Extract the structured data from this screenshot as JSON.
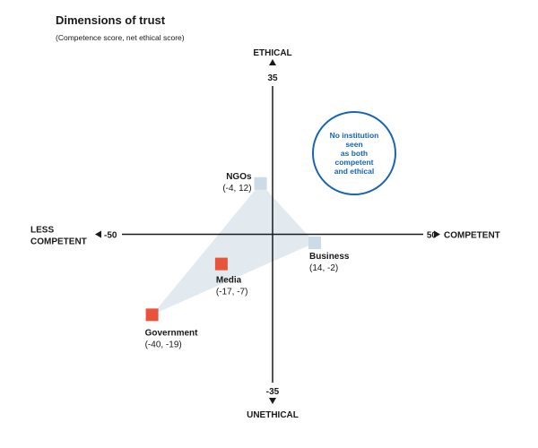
{
  "title": "Dimensions of trust",
  "subtitle": "(Competence score, net ethical score)",
  "callout": "No institution seen\nas both competent\nand ethical",
  "colors": {
    "highlight": "#e8543a",
    "neutral": "#ccdbe6",
    "triangle": "#e2eaf0",
    "callout": "#1565b5"
  },
  "chart_data": {
    "type": "scatter",
    "title": "Dimensions of trust",
    "subtitle": "(Competence score, net ethical score)",
    "xlabel_left": [
      "LESS",
      "COMPETENT"
    ],
    "xlabel_right": "COMPETENT",
    "ylabel_top": "ETHICAL",
    "ylabel_bottom": "UNETHICAL",
    "xlim": [
      -50,
      50
    ],
    "ylim": [
      -35,
      35
    ],
    "x_tick_labels": [
      "-50",
      "50"
    ],
    "y_tick_labels": [
      "35",
      "-35"
    ],
    "points": [
      {
        "name": "NGOs",
        "coord_label": "(-4, 12)",
        "x": -4,
        "y": 12,
        "highlight": false
      },
      {
        "name": "Business",
        "coord_label": "(14, -2)",
        "x": 14,
        "y": -2,
        "highlight": false
      },
      {
        "name": "Media",
        "coord_label": "(-17, -7)",
        "x": -17,
        "y": -7,
        "highlight": true
      },
      {
        "name": "Government",
        "coord_label": "(-40, -19)",
        "x": -40,
        "y": -19,
        "highlight": true
      }
    ],
    "triangle": [
      "NGOs",
      "Business",
      "Government"
    ]
  }
}
